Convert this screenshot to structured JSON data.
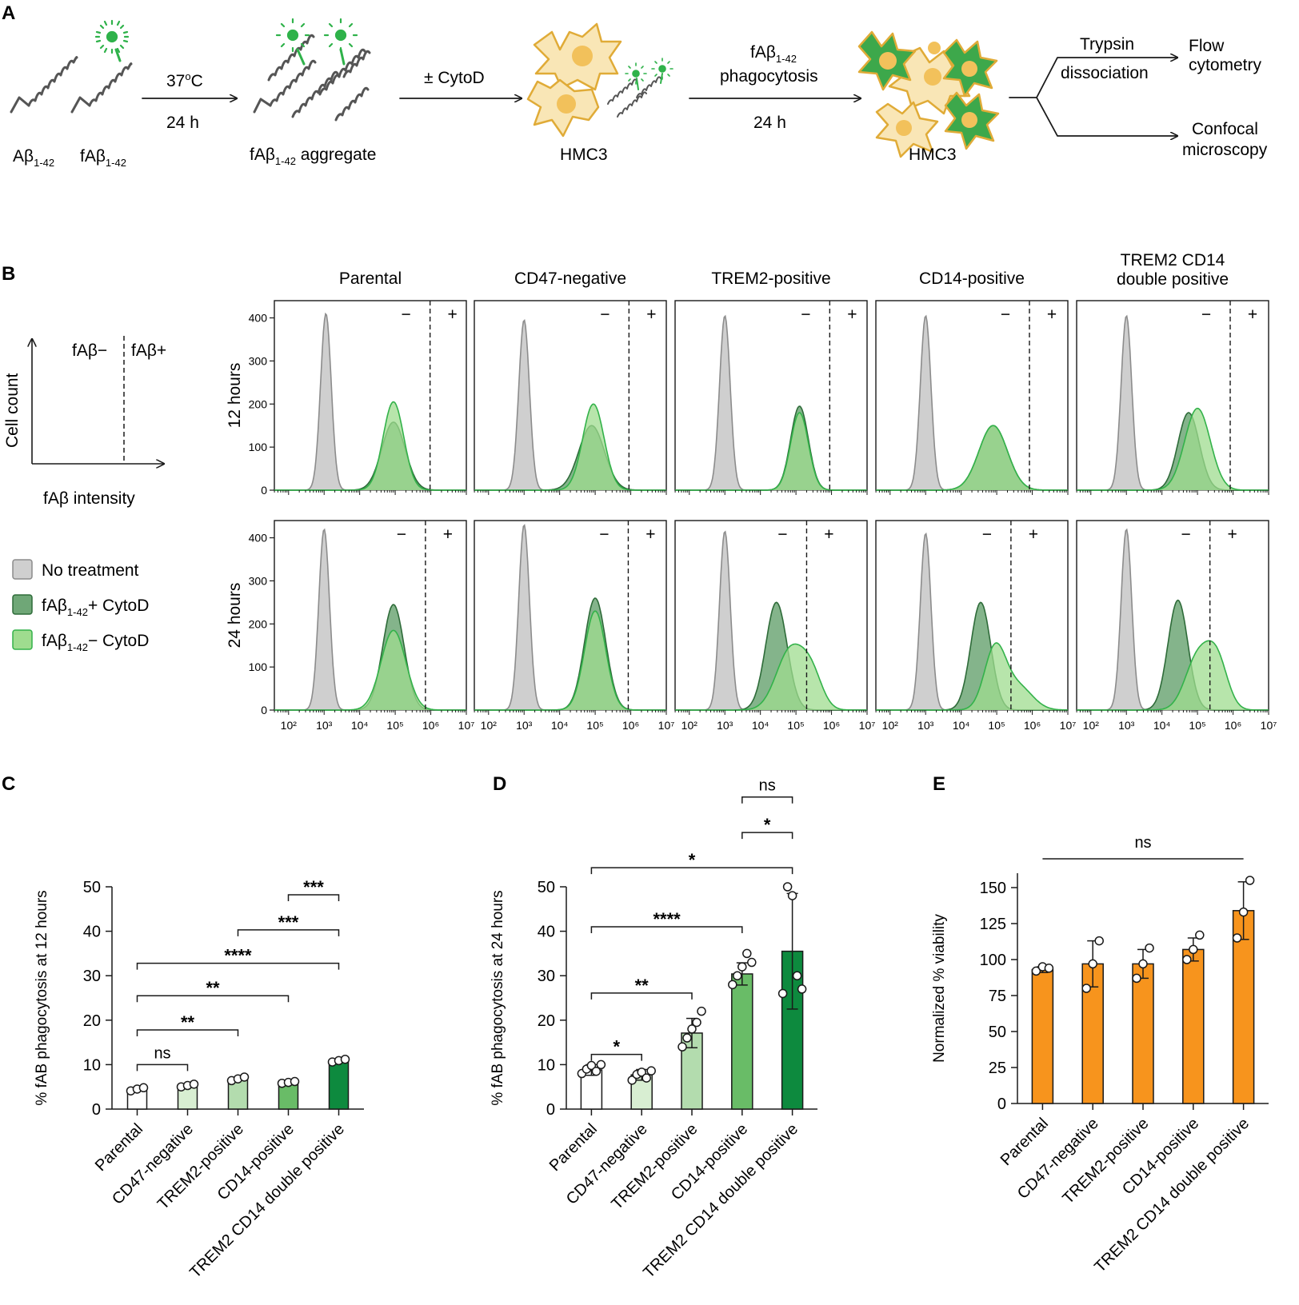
{
  "panel_letters": {
    "a": "A",
    "b": "B",
    "c": "C",
    "d": "D",
    "e": "E"
  },
  "colors": {
    "gray_fill": "#cfcfcf",
    "gray_line": "#8c8c8c",
    "dark_fill": "#6fa777",
    "dark_line": "#2e6b39",
    "light_fill": "#9fdc8f",
    "light_line": "#33b24a",
    "cell_fill": "#f9e6b6",
    "cell_line": "#e0ab37",
    "nucleus": "#f2c15b",
    "green_cell": "#3da84b",
    "dye": "#2fb24a",
    "orange": "#f7941d",
    "bar_colors": [
      "#ffffff",
      "#d8eed2",
      "#b3dcae",
      "#69bc67",
      "#0d8a3e"
    ]
  },
  "schematic": {
    "ab_label": "Aβ",
    "ab_sub": "1-42",
    "fab_label": "fAβ",
    "fab_sub": "1-42",
    "temp_label": "37",
    "temp_sup": "o",
    "temp_unit": "C",
    "time1": "24 h",
    "aggregate_label": "fAβ",
    "aggregate_sub": "1-42",
    "aggregate_rest": " aggregate",
    "cytod_label": "± CytoD",
    "hmc3_1": "HMC3",
    "phago_line1_main": "fAβ",
    "phago_line1_sub": "1-42",
    "phago_line2": "phagocytosis",
    "time2": "24 h",
    "hmc3_2": "HMC3",
    "trypsin": "Trypsin",
    "dissociation": "dissociation",
    "flow_1": "Flow",
    "flow_2": "cytometry",
    "confocal_1": "Confocal",
    "confocal_2": "microscopy"
  },
  "gating_schema": {
    "y_label": "Cell count",
    "x_label": "fAβ intensity",
    "neg_label": "fAβ−",
    "pos_label": "fAβ+"
  },
  "legend": {
    "no_treatment": "No treatment",
    "plus_main": "fAβ",
    "plus_sub": "1-42",
    "plus_rest": "+ CytoD",
    "minus_main": "fAβ",
    "minus_sub": "1-42",
    "minus_rest": "− CytoD"
  },
  "chart_data": [
    {
      "type": "histogram",
      "panel": "B",
      "columns": [
        "Parental",
        "CD47-negative",
        "TREM2-positive",
        "CD14-positive",
        "TREM2 CD14|double positive"
      ],
      "rows": [
        "12 hours",
        "24 hours"
      ],
      "y_ticks": [
        0,
        100,
        200,
        300,
        400
      ],
      "ylim": [
        0,
        440
      ],
      "x_scale": "log10",
      "xlim_log10": [
        1.6,
        7.0
      ],
      "x_tick_labels": [
        "10²",
        "10³",
        "10⁴",
        "10⁵",
        "10⁶",
        "10⁷"
      ],
      "x_tick_log": [
        2,
        3,
        4,
        5,
        6,
        7
      ],
      "gate_minus": "−",
      "gate_plus": "+",
      "series_names": [
        "No treatment",
        "fAβ1-42 + CytoD",
        "fAβ1-42 − CytoD"
      ],
      "gates_log10": [
        [
          5.98,
          5.95,
          5.95,
          5.92,
          5.92
        ],
        [
          5.85,
          5.93,
          5.3,
          5.4,
          5.35
        ]
      ],
      "peaks": [
        [
          {
            "g": [
              3.05,
              0.15,
              410
            ],
            "d": [
              [
                4.95,
                0.33,
                158
              ]
            ],
            "l": [
              [
                4.95,
                0.29,
                205
              ]
            ]
          },
          {
            "g": [
              3.0,
              0.15,
              395
            ],
            "d": [
              [
                4.9,
                0.36,
                150
              ]
            ],
            "l": [
              [
                4.95,
                0.3,
                200
              ]
            ]
          },
          {
            "g": [
              3.0,
              0.15,
              405
            ],
            "d": [
              [
                5.1,
                0.25,
                195
              ]
            ],
            "l": [
              [
                5.1,
                0.25,
                180
              ]
            ]
          },
          {
            "g": [
              3.0,
              0.15,
              405
            ],
            "d": [
              [
                4.9,
                0.4,
                150
              ]
            ],
            "l": [
              [
                4.9,
                0.4,
                150
              ]
            ]
          },
          {
            "g": [
              3.0,
              0.15,
              405
            ],
            "d": [
              [
                4.75,
                0.3,
                180
              ]
            ],
            "l": [
              [
                5.0,
                0.36,
                190
              ]
            ]
          }
        ],
        [
          {
            "g": [
              3.0,
              0.15,
              420
            ],
            "d": [
              [
                4.95,
                0.3,
                245
              ]
            ],
            "l": [
              [
                4.95,
                0.35,
                185
              ]
            ]
          },
          {
            "g": [
              3.0,
              0.15,
              430
            ],
            "d": [
              [
                5.0,
                0.3,
                260
              ]
            ],
            "l": [
              [
                5.0,
                0.3,
                230
              ]
            ]
          },
          {
            "g": [
              3.0,
              0.15,
              415
            ],
            "d": [
              [
                4.45,
                0.3,
                250
              ]
            ],
            "l": [
              [
                4.85,
                0.4,
                140
              ],
              [
                5.45,
                0.3,
                70
              ]
            ]
          },
          {
            "g": [
              3.0,
              0.15,
              410
            ],
            "d": [
              [
                4.55,
                0.28,
                250
              ]
            ],
            "l": [
              [
                4.95,
                0.3,
                140
              ],
              [
                5.6,
                0.4,
                55
              ]
            ]
          },
          {
            "g": [
              3.0,
              0.15,
              420
            ],
            "d": [
              [
                4.45,
                0.28,
                255
              ]
            ],
            "l": [
              [
                5.0,
                0.35,
                120
              ],
              [
                5.55,
                0.3,
                110
              ]
            ]
          }
        ]
      ]
    },
    {
      "type": "bar",
      "panel": "C",
      "categories": [
        "Parental",
        "CD47-negative",
        "TREM2-positive",
        "CD14-positive",
        "TREM2 CD14 double positive"
      ],
      "values": [
        4.5,
        5.3,
        6.8,
        6.0,
        10.9
      ],
      "points": [
        [
          4.1,
          4.5,
          4.8
        ],
        [
          5.0,
          5.3,
          5.6
        ],
        [
          6.4,
          6.8,
          7.2
        ],
        [
          5.8,
          6.0,
          6.2
        ],
        [
          10.6,
          10.9,
          11.2
        ]
      ],
      "errors": [
        0,
        0,
        0,
        0,
        0
      ],
      "ylabel": "% fAB phagocytosis at 12 hours",
      "ylim": [
        0,
        50
      ],
      "y_ticks": [
        0,
        10,
        20,
        30,
        40,
        50
      ],
      "significance": [
        {
          "a": 0,
          "b": 1,
          "y": 10.0,
          "label": "ns"
        },
        {
          "a": 0,
          "b": 2,
          "y": 17.8,
          "label": "**"
        },
        {
          "a": 0,
          "b": 3,
          "y": 25.5,
          "label": "**"
        },
        {
          "a": 0,
          "b": 4,
          "y": 32.8,
          "label": "****"
        },
        {
          "a": 2,
          "b": 4,
          "y": 40.3,
          "label": "***"
        },
        {
          "a": 3,
          "b": 4,
          "y": 48.2,
          "label": "***"
        }
      ]
    },
    {
      "type": "bar",
      "panel": "D",
      "categories": [
        "Parental",
        "CD47-negative",
        "TREM2-positive",
        "CD14-positive",
        "TREM2 CD14 double positive"
      ],
      "values": [
        8.8,
        7.7,
        17.1,
        30.4,
        35.5
      ],
      "points": [
        [
          8.0,
          9.0,
          9.8,
          8.5,
          10.0
        ],
        [
          6.5,
          7.8,
          8.3,
          7.0,
          8.6
        ],
        [
          14.0,
          16.0,
          18.0,
          19.5,
          22.0
        ],
        [
          28.0,
          30.0,
          32.0,
          35.0,
          33.0
        ],
        [
          26.0,
          50.0,
          48.0,
          30.0,
          27.0
        ]
      ],
      "errors": [
        1.2,
        1.2,
        3.3,
        2.5,
        13.0
      ],
      "ylabel": "% fAB phagocytosis at 24 hours",
      "ylim": [
        0,
        50
      ],
      "y_ticks": [
        0,
        10,
        20,
        30,
        40,
        50
      ],
      "significance": [
        {
          "a": 0,
          "b": 1,
          "y": 12.3,
          "label": "*"
        },
        {
          "a": 0,
          "b": 2,
          "y": 26.1,
          "label": "**"
        },
        {
          "a": 0,
          "b": 3,
          "y": 41.0,
          "label": "****"
        },
        {
          "a": 0,
          "b": 4,
          "y": 54.3,
          "label": "*"
        },
        {
          "a": 3,
          "b": 4,
          "y": 62.2,
          "label": "*"
        },
        {
          "a": 3,
          "b": 4,
          "y": 70.2,
          "label": "ns"
        }
      ]
    },
    {
      "type": "bar",
      "panel": "E",
      "categories": [
        "Parental",
        "CD47-negative",
        "TREM2-positive",
        "CD14-positive",
        "TREM2 CD14 double positive"
      ],
      "values": [
        93,
        97,
        97,
        107,
        134
      ],
      "points": [
        [
          92,
          95,
          94
        ],
        [
          80,
          97,
          113
        ],
        [
          87,
          97,
          108
        ],
        [
          100,
          107,
          117
        ],
        [
          115,
          133,
          155
        ]
      ],
      "errors": [
        2,
        16,
        10,
        8,
        20
      ],
      "ylabel": "Normalized % viability",
      "ylim": [
        0,
        160
      ],
      "y_ticks": [
        0,
        25,
        50,
        75,
        100,
        125,
        150
      ],
      "significance": [
        {
          "a": 0,
          "b": 4,
          "y": 170,
          "label": "ns",
          "style": "line"
        }
      ]
    }
  ]
}
